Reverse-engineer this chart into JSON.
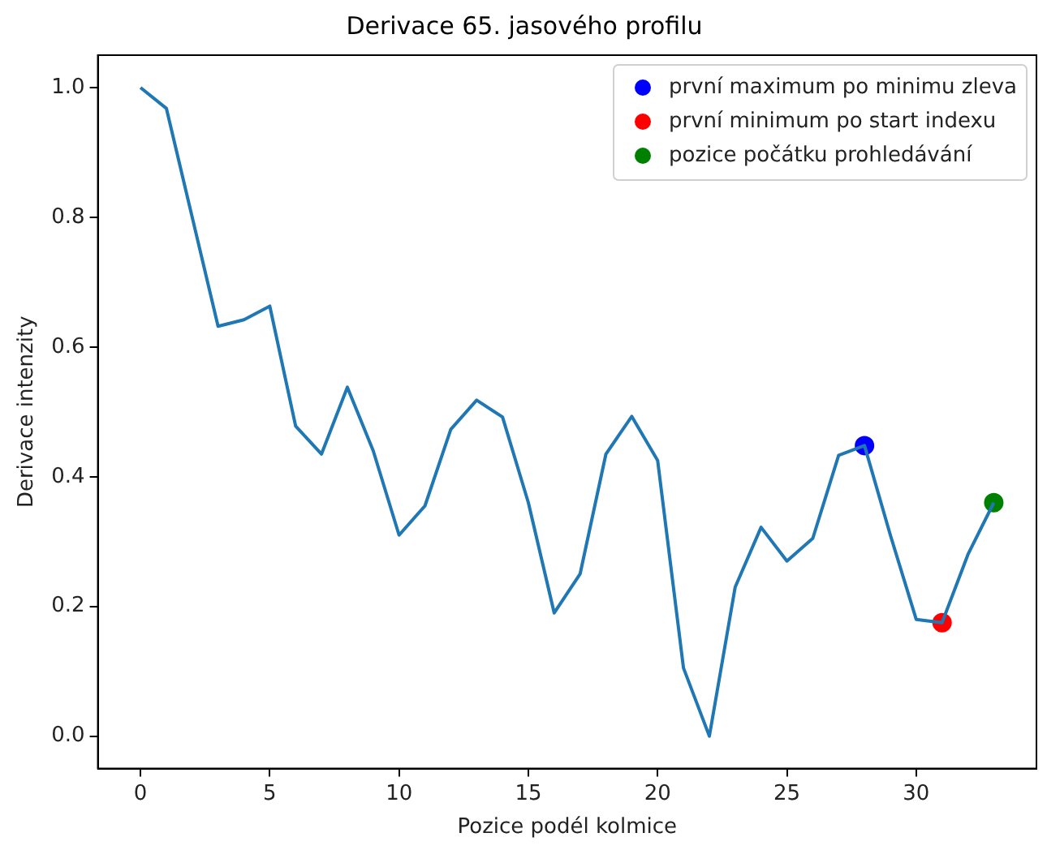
{
  "chart_data": {
    "type": "line",
    "title": "Derivace 65. jasového profilu",
    "xlabel": "Pozice podél kolmice",
    "ylabel": "Derivace intenzity",
    "xlim": [
      -1.65,
      34.65
    ],
    "xticks": [
      0,
      5,
      10,
      15,
      20,
      25,
      30
    ],
    "ylim": [
      -0.05,
      1.05
    ],
    "yticks": [
      {
        "value": 0,
        "label": "0.0"
      },
      {
        "value": 0.2,
        "label": "0.2"
      },
      {
        "value": 0.4,
        "label": "0.4"
      },
      {
        "value": 0.6,
        "label": "0.6"
      },
      {
        "value": 0.8,
        "label": "0.8"
      },
      {
        "value": 1,
        "label": "1.0"
      }
    ],
    "grid": false,
    "legend": "top right",
    "series": [
      {
        "color": "#1f77b4",
        "marker": "none",
        "x": [
          0,
          1,
          2,
          3,
          4,
          5,
          6,
          7,
          8,
          9,
          10,
          11,
          12,
          13,
          14,
          15,
          16,
          17,
          18,
          19,
          20,
          21,
          22,
          23,
          24,
          25,
          26,
          27,
          28,
          29,
          30,
          31,
          32,
          33
        ],
        "values": [
          1.0,
          0.968,
          0.8,
          0.632,
          0.642,
          0.663,
          0.478,
          0.435,
          0.538,
          0.44,
          0.31,
          0.355,
          0.473,
          0.518,
          0.492,
          0.36,
          0.19,
          0.25,
          0.435,
          0.493,
          0.425,
          0.105,
          0.0,
          0.23,
          0.322,
          0.27,
          0.305,
          0.433,
          0.448,
          0.31,
          0.18,
          0.175,
          0.28,
          0.36
        ]
      },
      {
        "type": "scatter",
        "name": "první maximum po minimu zleva",
        "color": "#0000ff",
        "marker": "circle",
        "x": [
          28
        ],
        "values": [
          0.448
        ]
      },
      {
        "type": "scatter",
        "name": "první minimum po start indexu",
        "color": "#ff0000",
        "marker": "circle",
        "x": [
          31
        ],
        "values": [
          0.175
        ]
      },
      {
        "type": "scatter",
        "name": "pozice počátku prohledávání",
        "color": "#008000",
        "marker": "circle",
        "x": [
          33
        ],
        "values": [
          0.36
        ]
      }
    ]
  }
}
